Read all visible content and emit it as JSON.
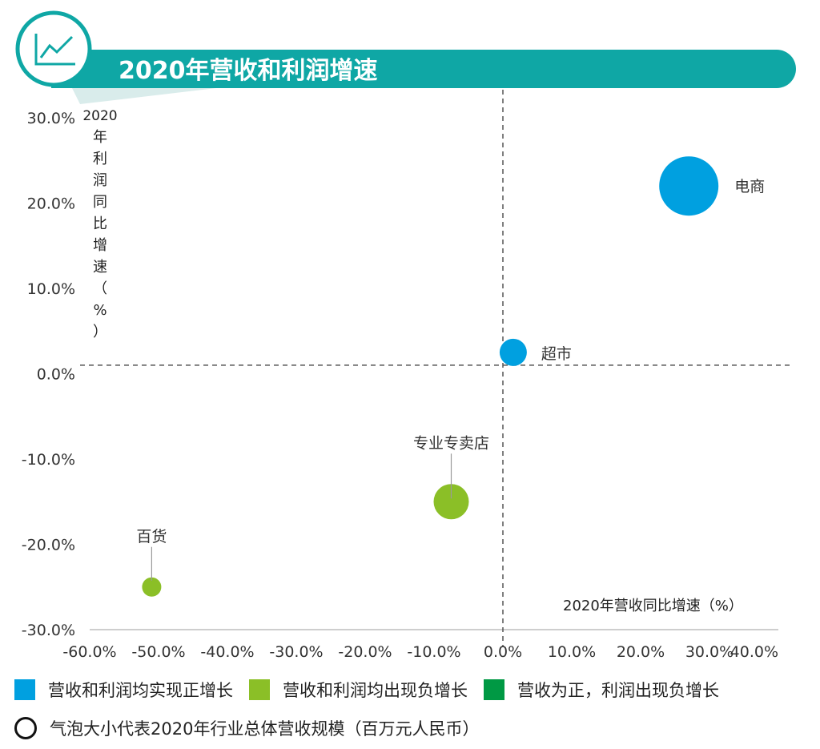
{
  "header": {
    "title": "2020年营收和利润增速",
    "icon": "line-chart-icon",
    "color": "#0fa7a5"
  },
  "chart_data": {
    "type": "bubble",
    "title": "2020年营收和利润增速",
    "xlabel": "2020年营收同比增速（%）",
    "ylabel": "2020年利润同比增速（%）",
    "xlim": [
      -60,
      40
    ],
    "ylim": [
      -30,
      30
    ],
    "x_ticks": [
      "-60.0%",
      "-50.0%",
      "-40.0%",
      "-30.0%",
      "-20.0%",
      "-10.0%",
      "0.0%",
      "10.0%",
      "20.0%",
      "30.0%",
      "40.0%"
    ],
    "y_ticks": [
      "30.0%",
      "20.0%",
      "10.0%",
      "0.0%",
      "-10.0%",
      "-20.0%",
      "-30.0%"
    ],
    "reference_lines": {
      "x": 0,
      "y": 1
    },
    "points": [
      {
        "label": "电商",
        "x": 27,
        "y": 22,
        "size": 37,
        "color": "#00a0e0"
      },
      {
        "label": "超市",
        "x": 1.5,
        "y": 2.5,
        "size": 17,
        "color": "#00a0e0"
      },
      {
        "label": "专业专卖店",
        "x": -7.5,
        "y": -15,
        "size": 22,
        "color": "#8bbf27"
      },
      {
        "label": "百货",
        "x": -51,
        "y": -25,
        "size": 12,
        "color": "#8bbf27"
      }
    ],
    "legend": [
      {
        "label": "营收和利润均实现正增长",
        "color": "#00a0e0"
      },
      {
        "label": "营收和利润均出现负增长",
        "color": "#8bbf27"
      },
      {
        "label": "营收为正，利润出现负增长",
        "color": "#009944"
      }
    ],
    "size_note": "气泡大小代表2020年行业总体营收规模（百万元人民币）"
  }
}
